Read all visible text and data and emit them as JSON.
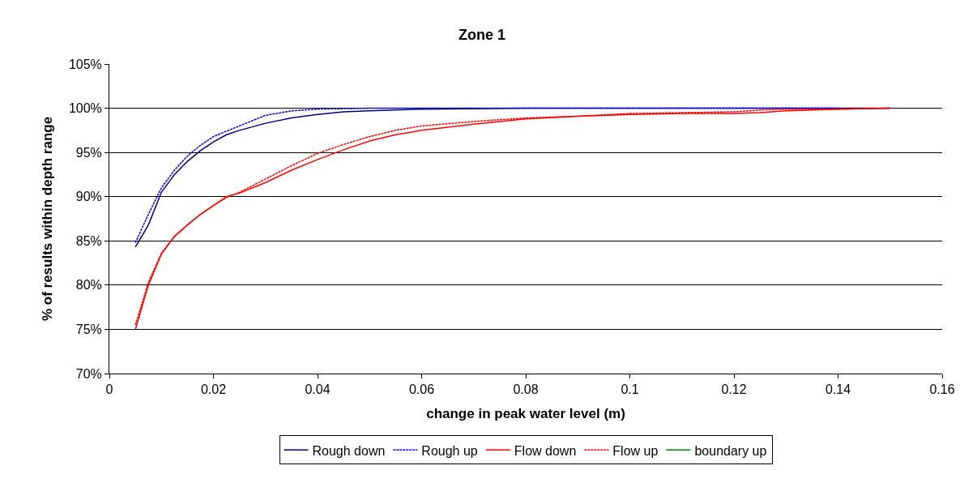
{
  "chart_data": {
    "type": "line",
    "title": "Zone 1",
    "xlabel": "change in peak water level (m)",
    "ylabel": "% of results within depth range",
    "xlim": [
      0,
      0.16
    ],
    "xticks": [
      0,
      0.02,
      0.04,
      0.06,
      0.08,
      0.1,
      0.12,
      0.14,
      0.16
    ],
    "ylim": [
      70,
      105
    ],
    "yticks": [
      {
        "value": 70,
        "label": "70%"
      },
      {
        "value": 75,
        "label": "75%"
      },
      {
        "value": 80,
        "label": "80%"
      },
      {
        "value": 85,
        "label": "85%"
      },
      {
        "value": 90,
        "label": "90%"
      },
      {
        "value": 95,
        "label": "95%"
      },
      {
        "value": 100,
        "label": "100%"
      },
      {
        "value": 105,
        "label": "105%"
      }
    ],
    "grid": "y",
    "legend": "bottom",
    "marker": "none",
    "series": [
      {
        "name": "Rough down",
        "color": "#000080",
        "line_style": "solid",
        "x": [
          0.005,
          0.0075,
          0.01,
          0.0125,
          0.015,
          0.0175,
          0.02,
          0.0225,
          0.025,
          0.03,
          0.035,
          0.04,
          0.045,
          0.05,
          0.06,
          0.08,
          0.1,
          0.12,
          0.14,
          0.15
        ],
        "values": [
          84.3,
          86.8,
          90.5,
          92.5,
          94,
          95.2,
          96.2,
          97,
          97.5,
          98.3,
          98.9,
          99.3,
          99.6,
          99.7,
          99.9,
          100,
          100,
          100,
          100,
          100
        ]
      },
      {
        "name": "Rough up",
        "color": "#0000ff",
        "line_style": "dotted",
        "x": [
          0.005,
          0.0075,
          0.01,
          0.0125,
          0.015,
          0.0175,
          0.02,
          0.025,
          0.03,
          0.035,
          0.04,
          0.05,
          0.06,
          0.08,
          0.1,
          0.12,
          0.14
        ],
        "values": [
          84.8,
          88,
          91,
          93,
          94.6,
          95.8,
          96.8,
          98,
          99.2,
          99.7,
          99.9,
          100,
          100,
          100,
          100,
          100,
          100
        ]
      },
      {
        "name": "Flow down",
        "color": "#ff0000",
        "line_style": "solid",
        "x": [
          0.005,
          0.0075,
          0.01,
          0.0125,
          0.015,
          0.0175,
          0.02,
          0.0225,
          0.025,
          0.03,
          0.035,
          0.04,
          0.045,
          0.05,
          0.055,
          0.06,
          0.07,
          0.08,
          0.09,
          0.1,
          0.11,
          0.12,
          0.125,
          0.13,
          0.14,
          0.15
        ],
        "values": [
          75,
          80,
          83.5,
          85.5,
          86.8,
          88,
          89,
          90,
          90.4,
          91.6,
          93,
          94.2,
          95.3,
          96.3,
          97,
          97.5,
          98.2,
          98.8,
          99.1,
          99.3,
          99.4,
          99.4,
          99.5,
          99.7,
          99.9,
          100
        ]
      },
      {
        "name": "Flow up",
        "color": "#ff0000",
        "line_style": "dotted",
        "x": [
          0.005,
          0.0075,
          0.01,
          0.0125,
          0.015,
          0.0175,
          0.02,
          0.0225,
          0.025,
          0.03,
          0.035,
          0.04,
          0.045,
          0.05,
          0.055,
          0.06,
          0.07,
          0.08,
          0.09,
          0.1,
          0.11,
          0.12,
          0.125,
          0.13,
          0.14,
          0.15
        ],
        "values": [
          75.5,
          80.3,
          83.6,
          85.5,
          86.8,
          88,
          89,
          89.9,
          90.5,
          92,
          93.5,
          94.9,
          95.9,
          96.8,
          97.5,
          98,
          98.5,
          98.9,
          99.1,
          99.4,
          99.5,
          99.6,
          99.8,
          99.9,
          99.9,
          100
        ]
      },
      {
        "name": "boundary up",
        "color": "#008000",
        "line_style": "solid",
        "values": [
          null
        ]
      }
    ]
  }
}
